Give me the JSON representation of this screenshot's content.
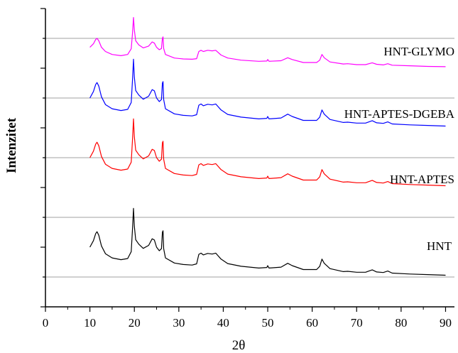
{
  "chart_data": {
    "type": "line",
    "xlabel": "2θ",
    "ylabel": "Intenzitet",
    "xlim": [
      0,
      92
    ],
    "ylim": [
      0,
      100
    ],
    "xticks": [
      0,
      10,
      20,
      30,
      40,
      50,
      60,
      70,
      80,
      90
    ],
    "xtick_labels": [
      "0",
      "10",
      "20",
      "30",
      "40",
      "50",
      "60",
      "70",
      "80",
      "90"
    ],
    "grid": "horizontal baselines",
    "legend": "none (series labelled inline on the right)",
    "series": [
      {
        "name": "HNT",
        "color": "#000000",
        "baseline": 10,
        "points": [
          [
            10,
            10
          ],
          [
            10.8,
            12.2
          ],
          [
            11.3,
            14.5
          ],
          [
            11.6,
            15.2
          ],
          [
            12.0,
            14.0
          ],
          [
            12.6,
            10.4
          ],
          [
            13.5,
            7.8
          ],
          [
            15,
            6.4
          ],
          [
            17,
            5.8
          ],
          [
            18.5,
            6.2
          ],
          [
            19.3,
            8.5
          ],
          [
            19.6,
            16.5
          ],
          [
            19.8,
            23.0
          ],
          [
            20.0,
            17.0
          ],
          [
            20.3,
            12.5
          ],
          [
            21,
            11.0
          ],
          [
            22,
            9.6
          ],
          [
            23.2,
            10.6
          ],
          [
            24.0,
            12.8
          ],
          [
            24.5,
            12.4
          ],
          [
            25.0,
            10.0
          ],
          [
            25.6,
            8.8
          ],
          [
            26.1,
            9.5
          ],
          [
            26.3,
            15.0
          ],
          [
            26.45,
            15.5
          ],
          [
            26.6,
            9.5
          ],
          [
            27,
            6.4
          ],
          [
            29,
            4.7
          ],
          [
            31,
            4.2
          ],
          [
            33,
            4.0
          ],
          [
            34,
            4.4
          ],
          [
            34.5,
            7.6
          ],
          [
            35,
            8.0
          ],
          [
            35.5,
            7.4
          ],
          [
            36.5,
            7.9
          ],
          [
            37.5,
            7.7
          ],
          [
            38.3,
            8.0
          ],
          [
            39.5,
            6.0
          ],
          [
            41,
            4.5
          ],
          [
            44,
            3.6
          ],
          [
            48,
            3.0
          ],
          [
            49.8,
            3.2
          ],
          [
            50,
            3.8
          ],
          [
            50.3,
            3.0
          ],
          [
            53,
            3.3
          ],
          [
            54.5,
            4.6
          ],
          [
            55.5,
            3.8
          ],
          [
            58,
            2.5
          ],
          [
            61,
            2.5
          ],
          [
            61.7,
            3.6
          ],
          [
            62.2,
            6.0
          ],
          [
            62.7,
            4.6
          ],
          [
            64,
            2.8
          ],
          [
            67,
            1.8
          ],
          [
            68,
            1.9
          ],
          [
            70,
            1.6
          ],
          [
            72,
            1.6
          ],
          [
            73.5,
            2.4
          ],
          [
            74.5,
            1.7
          ],
          [
            76,
            1.5
          ],
          [
            77,
            2.0
          ],
          [
            78,
            1.3
          ],
          [
            82,
            1.0
          ],
          [
            86,
            0.8
          ],
          [
            90,
            0.6
          ]
        ]
      },
      {
        "name": "HNT-APTES",
        "color": "#ff0000",
        "baseline": 40,
        "points": [
          [
            10,
            10
          ],
          [
            10.8,
            12.2
          ],
          [
            11.3,
            14.5
          ],
          [
            11.6,
            15.2
          ],
          [
            12.0,
            14.0
          ],
          [
            12.6,
            10.4
          ],
          [
            13.5,
            7.8
          ],
          [
            15,
            6.4
          ],
          [
            17,
            5.8
          ],
          [
            18.5,
            6.2
          ],
          [
            19.3,
            8.5
          ],
          [
            19.6,
            16.5
          ],
          [
            19.8,
            23.0
          ],
          [
            20.0,
            17.0
          ],
          [
            20.3,
            12.5
          ],
          [
            21,
            11.0
          ],
          [
            22,
            9.6
          ],
          [
            23.2,
            10.6
          ],
          [
            24.0,
            12.8
          ],
          [
            24.5,
            12.4
          ],
          [
            25.0,
            10.0
          ],
          [
            25.6,
            8.8
          ],
          [
            26.1,
            9.5
          ],
          [
            26.3,
            15.0
          ],
          [
            26.45,
            15.5
          ],
          [
            26.6,
            9.5
          ],
          [
            27,
            6.4
          ],
          [
            29,
            4.7
          ],
          [
            31,
            4.2
          ],
          [
            33,
            4.0
          ],
          [
            34,
            4.4
          ],
          [
            34.5,
            7.6
          ],
          [
            35,
            8.0
          ],
          [
            35.5,
            7.4
          ],
          [
            36.5,
            7.9
          ],
          [
            37.5,
            7.7
          ],
          [
            38.3,
            8.0
          ],
          [
            39.5,
            6.0
          ],
          [
            41,
            4.5
          ],
          [
            44,
            3.6
          ],
          [
            48,
            3.0
          ],
          [
            49.8,
            3.2
          ],
          [
            50,
            3.8
          ],
          [
            50.3,
            3.0
          ],
          [
            53,
            3.3
          ],
          [
            54.5,
            4.6
          ],
          [
            55.5,
            3.8
          ],
          [
            58,
            2.5
          ],
          [
            61,
            2.5
          ],
          [
            61.7,
            3.6
          ],
          [
            62.2,
            6.0
          ],
          [
            62.7,
            4.6
          ],
          [
            64,
            2.8
          ],
          [
            67,
            1.8
          ],
          [
            68,
            1.9
          ],
          [
            70,
            1.6
          ],
          [
            72,
            1.6
          ],
          [
            73.5,
            2.4
          ],
          [
            74.5,
            1.7
          ],
          [
            76,
            1.5
          ],
          [
            77,
            2.0
          ],
          [
            78,
            1.3
          ],
          [
            82,
            1.0
          ],
          [
            86,
            0.8
          ],
          [
            90,
            0.6
          ]
        ]
      },
      {
        "name": "HNT-APTES-DGEBA",
        "color": "#0000ff",
        "baseline": 60,
        "points": [
          [
            10,
            10
          ],
          [
            10.8,
            12.2
          ],
          [
            11.3,
            14.5
          ],
          [
            11.6,
            15.2
          ],
          [
            12.0,
            14.0
          ],
          [
            12.6,
            10.4
          ],
          [
            13.5,
            7.8
          ],
          [
            15,
            6.4
          ],
          [
            17,
            5.8
          ],
          [
            18.5,
            6.2
          ],
          [
            19.3,
            8.5
          ],
          [
            19.6,
            16.5
          ],
          [
            19.8,
            23.0
          ],
          [
            20.0,
            17.0
          ],
          [
            20.3,
            12.5
          ],
          [
            21,
            11.0
          ],
          [
            22,
            9.6
          ],
          [
            23.2,
            10.6
          ],
          [
            24.0,
            12.8
          ],
          [
            24.5,
            12.4
          ],
          [
            25.0,
            10.0
          ],
          [
            25.6,
            8.8
          ],
          [
            26.1,
            9.5
          ],
          [
            26.3,
            15.0
          ],
          [
            26.45,
            15.5
          ],
          [
            26.6,
            9.5
          ],
          [
            27,
            6.4
          ],
          [
            29,
            4.7
          ],
          [
            31,
            4.2
          ],
          [
            33,
            4.0
          ],
          [
            34,
            4.4
          ],
          [
            34.5,
            7.6
          ],
          [
            35,
            8.0
          ],
          [
            35.5,
            7.4
          ],
          [
            36.5,
            7.9
          ],
          [
            37.5,
            7.7
          ],
          [
            38.3,
            8.0
          ],
          [
            39.5,
            6.0
          ],
          [
            41,
            4.5
          ],
          [
            44,
            3.6
          ],
          [
            48,
            3.0
          ],
          [
            49.8,
            3.2
          ],
          [
            50,
            3.8
          ],
          [
            50.3,
            3.0
          ],
          [
            53,
            3.3
          ],
          [
            54.5,
            4.6
          ],
          [
            55.5,
            3.8
          ],
          [
            58,
            2.5
          ],
          [
            61,
            2.5
          ],
          [
            61.7,
            3.6
          ],
          [
            62.2,
            6.0
          ],
          [
            62.7,
            4.6
          ],
          [
            64,
            2.8
          ],
          [
            67,
            1.8
          ],
          [
            68,
            1.9
          ],
          [
            70,
            1.6
          ],
          [
            72,
            1.6
          ],
          [
            73.5,
            2.4
          ],
          [
            74.5,
            1.7
          ],
          [
            76,
            1.5
          ],
          [
            77,
            2.0
          ],
          [
            78,
            1.3
          ],
          [
            82,
            1.0
          ],
          [
            86,
            0.8
          ],
          [
            90,
            0.6
          ]
        ]
      },
      {
        "name": "HNT-GLYMO",
        "color": "#ff00ff",
        "baseline": 80,
        "points": [
          [
            10,
            7.0
          ],
          [
            10.8,
            8.2
          ],
          [
            11.3,
            9.6
          ],
          [
            11.6,
            10.0
          ],
          [
            12.0,
            9.2
          ],
          [
            12.6,
            7.0
          ],
          [
            13.5,
            5.6
          ],
          [
            15,
            4.6
          ],
          [
            17,
            4.2
          ],
          [
            18.5,
            4.6
          ],
          [
            19.3,
            6.5
          ],
          [
            19.6,
            12.0
          ],
          [
            19.8,
            17.0
          ],
          [
            20.0,
            12.8
          ],
          [
            20.3,
            9.2
          ],
          [
            21,
            7.8
          ],
          [
            22,
            6.8
          ],
          [
            23.2,
            7.4
          ],
          [
            24.0,
            8.8
          ],
          [
            24.5,
            8.4
          ],
          [
            25.0,
            7.0
          ],
          [
            25.6,
            6.2
          ],
          [
            26.1,
            6.6
          ],
          [
            26.3,
            10.0
          ],
          [
            26.45,
            10.5
          ],
          [
            26.6,
            6.6
          ],
          [
            27,
            4.6
          ],
          [
            29,
            3.4
          ],
          [
            31,
            3.1
          ],
          [
            33,
            3.0
          ],
          [
            34,
            3.2
          ],
          [
            34.5,
            5.6
          ],
          [
            35,
            6.0
          ],
          [
            35.5,
            5.6
          ],
          [
            36.5,
            6.0
          ],
          [
            37.5,
            5.8
          ],
          [
            38.3,
            6.0
          ],
          [
            39.5,
            4.4
          ],
          [
            41,
            3.4
          ],
          [
            44,
            2.7
          ],
          [
            48,
            2.3
          ],
          [
            49.8,
            2.4
          ],
          [
            50,
            2.9
          ],
          [
            50.3,
            2.3
          ],
          [
            53,
            2.5
          ],
          [
            54.5,
            3.5
          ],
          [
            55.5,
            2.9
          ],
          [
            58,
            1.9
          ],
          [
            61,
            1.9
          ],
          [
            61.7,
            2.7
          ],
          [
            62.2,
            4.6
          ],
          [
            62.7,
            3.5
          ],
          [
            64,
            2.1
          ],
          [
            67,
            1.4
          ],
          [
            68,
            1.5
          ],
          [
            70,
            1.2
          ],
          [
            72,
            1.2
          ],
          [
            73.5,
            1.8
          ],
          [
            74.5,
            1.3
          ],
          [
            76,
            1.1
          ],
          [
            77,
            1.5
          ],
          [
            78,
            1.0
          ],
          [
            82,
            0.8
          ],
          [
            86,
            0.6
          ],
          [
            90,
            0.5
          ]
        ]
      }
    ]
  }
}
